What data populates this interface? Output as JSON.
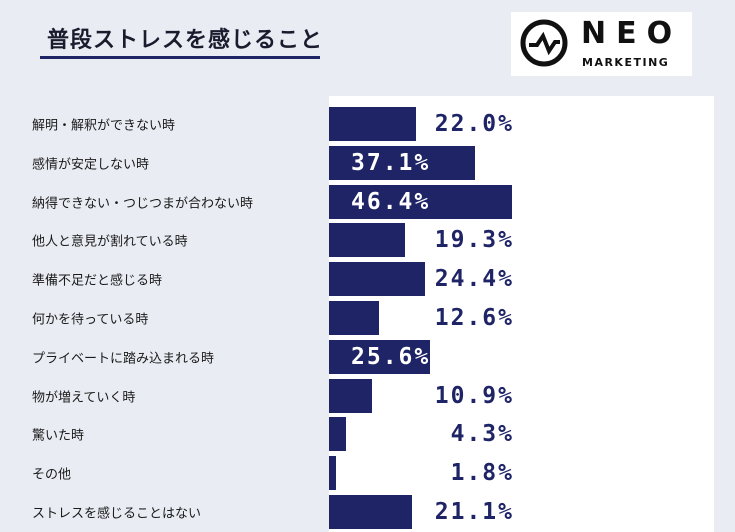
{
  "title": "普段ストレスを感じること",
  "logo": {
    "main": "NEO",
    "sub": "MARKETING"
  },
  "colors": {
    "bar": "#1e2466",
    "panel": "#ffffff",
    "background": "#e9ecf3"
  },
  "chart_data": {
    "type": "bar",
    "orientation": "horizontal",
    "categories": [
      "解明・解釈ができない時",
      "感情が安定しない時",
      "納得できない・つじつまが合わない時",
      "他人と意見が割れている時",
      "準備不足だと感じる時",
      "何かを待っている時",
      "プライベートに踏み込まれる時",
      "物が増えていく時",
      "驚いた時",
      "その他",
      "ストレスを感じることはない"
    ],
    "values": [
      22.0,
      37.1,
      46.4,
      19.3,
      24.4,
      12.6,
      25.6,
      10.9,
      4.3,
      1.8,
      21.1
    ],
    "labels": [
      "22.0%",
      "37.1%",
      "46.4%",
      "19.3%",
      "24.4%",
      "12.6%",
      "25.6%",
      "10.9%",
      "4.3%",
      "1.8%",
      "21.1%"
    ],
    "label_inside": [
      false,
      true,
      true,
      false,
      false,
      false,
      true,
      false,
      false,
      false,
      false
    ],
    "xlim": [
      0,
      46.4
    ],
    "grid": false,
    "legend": "none"
  }
}
